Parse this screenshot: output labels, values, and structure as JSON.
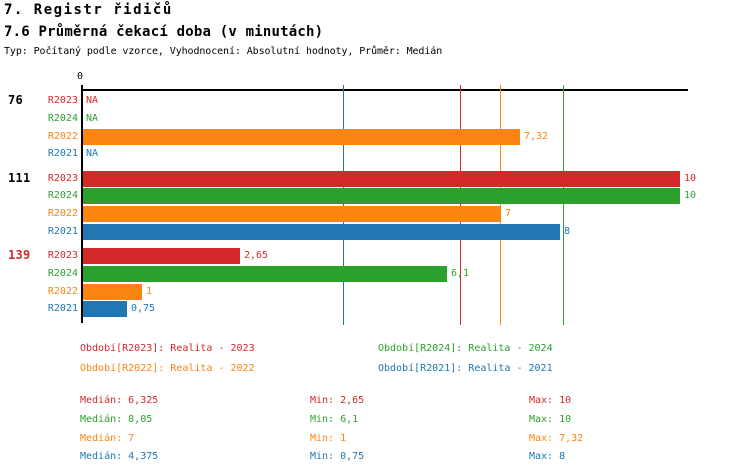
{
  "header": {
    "title": "7. Registr řidičů",
    "subtitle": "7.6 Průměrná čekací doba (v minutách)",
    "meta": "Typ: Počítaný podle vzorce, Vyhodnocení: Absolutní hodnoty, Průměr: Medián"
  },
  "colors": {
    "R2023": "#d4292a",
    "R2024": "#2ca02c",
    "R2022": "#fc8410",
    "R2021": "#2077b4",
    "axis": "#000000"
  },
  "chart_data": {
    "type": "bar",
    "orientation": "horizontal",
    "axis_zero_label": "0",
    "xlabel": "",
    "ylabel": "",
    "xlim": [
      0,
      10.15
    ],
    "grid": "median-marker-lines",
    "legend_position": "bottom",
    "series_order": [
      "R2023",
      "R2024",
      "R2022",
      "R2021"
    ],
    "groups": [
      {
        "label": "76",
        "label_color": "#000000",
        "rows": [
          {
            "series": "R2023",
            "value": null,
            "display": "NA"
          },
          {
            "series": "R2024",
            "value": null,
            "display": "NA"
          },
          {
            "series": "R2022",
            "value": 7.32,
            "display": "7,32"
          },
          {
            "series": "R2021",
            "value": null,
            "display": "NA"
          }
        ]
      },
      {
        "label": "111",
        "label_color": "#000000",
        "rows": [
          {
            "series": "R2023",
            "value": 10,
            "display": "10"
          },
          {
            "series": "R2024",
            "value": 10,
            "display": "10"
          },
          {
            "series": "R2022",
            "value": 7,
            "display": "7"
          },
          {
            "series": "R2021",
            "value": 8,
            "display": "8"
          }
        ]
      },
      {
        "label": "139",
        "label_color": "#d4292a",
        "rows": [
          {
            "series": "R2023",
            "value": 2.65,
            "display": "2,65"
          },
          {
            "series": "R2024",
            "value": 6.1,
            "display": "6,1"
          },
          {
            "series": "R2022",
            "value": 1,
            "display": "1"
          },
          {
            "series": "R2021",
            "value": 0.75,
            "display": "0,75"
          }
        ]
      }
    ],
    "median_lines": [
      {
        "series": "R2023",
        "value": 6.325
      },
      {
        "series": "R2024",
        "value": 8.05
      },
      {
        "series": "R2022",
        "value": 7
      },
      {
        "series": "R2021",
        "value": 4.375
      }
    ]
  },
  "legend": [
    {
      "series": "R2023",
      "label": "Období[R2023]: Realita - 2023"
    },
    {
      "series": "R2024",
      "label": "Období[R2024]: Realita - 2024"
    },
    {
      "series": "R2022",
      "label": "Období[R2022]: Realita - 2022"
    },
    {
      "series": "R2021",
      "label": "Období[R2021]: Realita - 2021"
    }
  ],
  "stats": [
    {
      "series": "R2023",
      "cells": [
        "Medián: 6,325",
        "Min: 2,65",
        "Max: 10"
      ]
    },
    {
      "series": "R2024",
      "cells": [
        "Medián: 8,05",
        "Min: 6,1",
        "Max: 10"
      ]
    },
    {
      "series": "R2022",
      "cells": [
        "Medián: 7",
        "Min: 1",
        "Max: 7,32"
      ]
    },
    {
      "series": "R2021",
      "cells": [
        "Medián: 4,375",
        "Min: 0,75",
        "Max: 8"
      ]
    }
  ]
}
